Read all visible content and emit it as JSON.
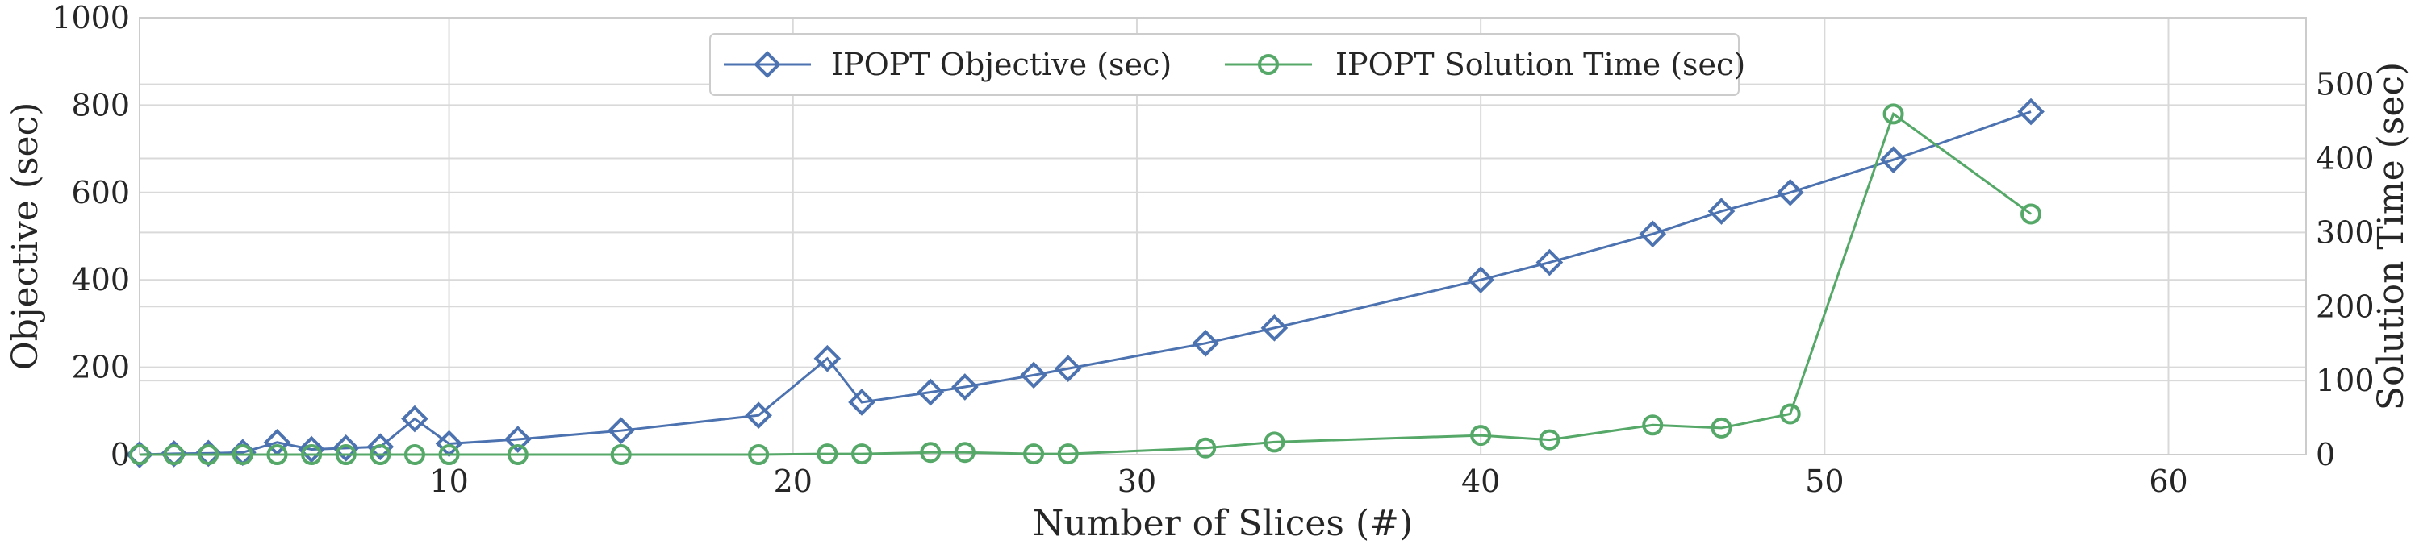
{
  "chart_data": {
    "type": "line",
    "title": "",
    "xlabel": "Number of Slices (#)",
    "ylabel_left": "Objective (sec)",
    "ylabel_right": "Solution Time (sec)",
    "xlim": [
      1,
      64
    ],
    "ylim_left": [
      0,
      1000
    ],
    "ylim_right": [
      0,
      590
    ],
    "x_ticks": [
      10,
      20,
      30,
      40,
      50,
      60
    ],
    "y_left_ticks": [
      0,
      200,
      400,
      600,
      800,
      1000
    ],
    "y_right_ticks": [
      0,
      100,
      200,
      300,
      400,
      500
    ],
    "grid": true,
    "legend_position": "top-center",
    "series": [
      {
        "name": "IPOPT Objective (sec)",
        "axis": "left",
        "color": "#4c72b0",
        "marker": "diamond",
        "x": [
          1,
          2,
          3,
          4,
          5,
          6,
          7,
          8,
          9,
          10,
          12,
          15,
          19,
          21,
          22,
          24,
          25,
          27,
          28,
          32,
          34,
          40,
          42,
          45,
          47,
          49,
          52,
          56
        ],
        "y": [
          0,
          2,
          3,
          5,
          28,
          12,
          15,
          18,
          82,
          25,
          35,
          55,
          90,
          220,
          120,
          143,
          155,
          182,
          197,
          255,
          290,
          400,
          440,
          505,
          557,
          600,
          675,
          785
        ]
      },
      {
        "name": "IPOPT Solution Time (sec)",
        "axis": "right",
        "color": "#55a868",
        "marker": "circle",
        "x": [
          1,
          2,
          3,
          4,
          5,
          6,
          7,
          8,
          9,
          10,
          12,
          15,
          19,
          21,
          22,
          24,
          25,
          27,
          28,
          32,
          34,
          40,
          42,
          45,
          47,
          49,
          52,
          56
        ],
        "y": [
          0,
          0,
          0,
          0,
          0,
          0,
          0,
          0,
          0,
          0,
          0,
          0,
          0,
          1,
          1,
          3,
          3,
          1,
          1,
          9,
          17,
          26,
          20,
          40,
          36,
          55,
          460,
          325
        ]
      }
    ]
  }
}
